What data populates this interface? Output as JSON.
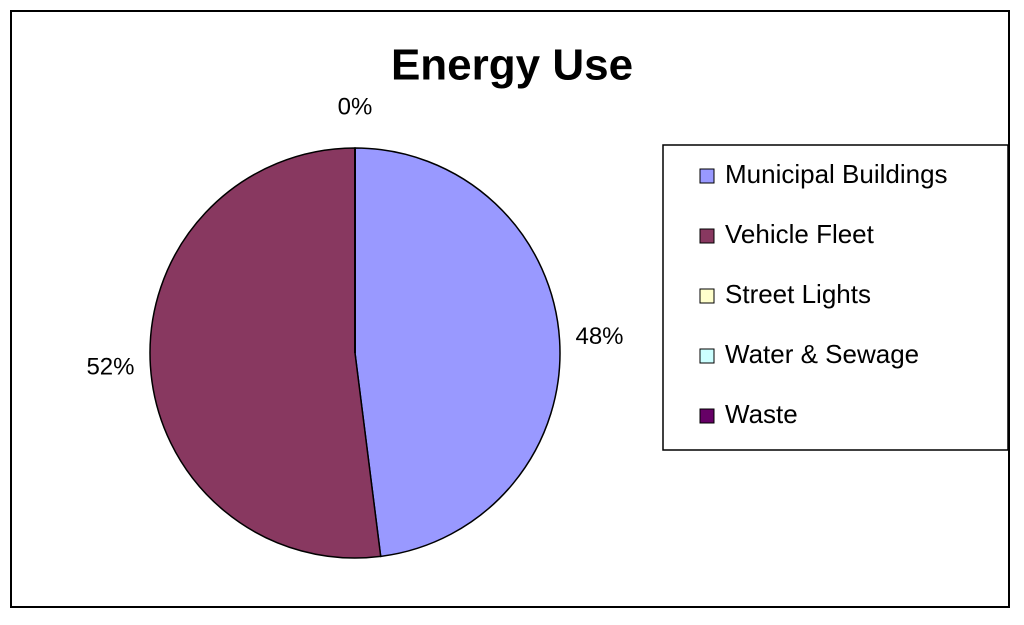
{
  "chart_data": {
    "type": "pie",
    "title": "Energy Use",
    "categories": [
      "Municipal Buildings",
      "Vehicle Fleet",
      "Street Lights",
      "Water & Sewage",
      "Waste"
    ],
    "values": [
      48,
      52,
      0,
      0,
      0
    ],
    "value_labels": [
      "48%",
      "52%",
      "0%",
      null,
      null
    ],
    "colors": [
      "#9999ff",
      "#883860",
      "#ffffcc",
      "#ccffff",
      "#660066"
    ],
    "legend": "right"
  }
}
